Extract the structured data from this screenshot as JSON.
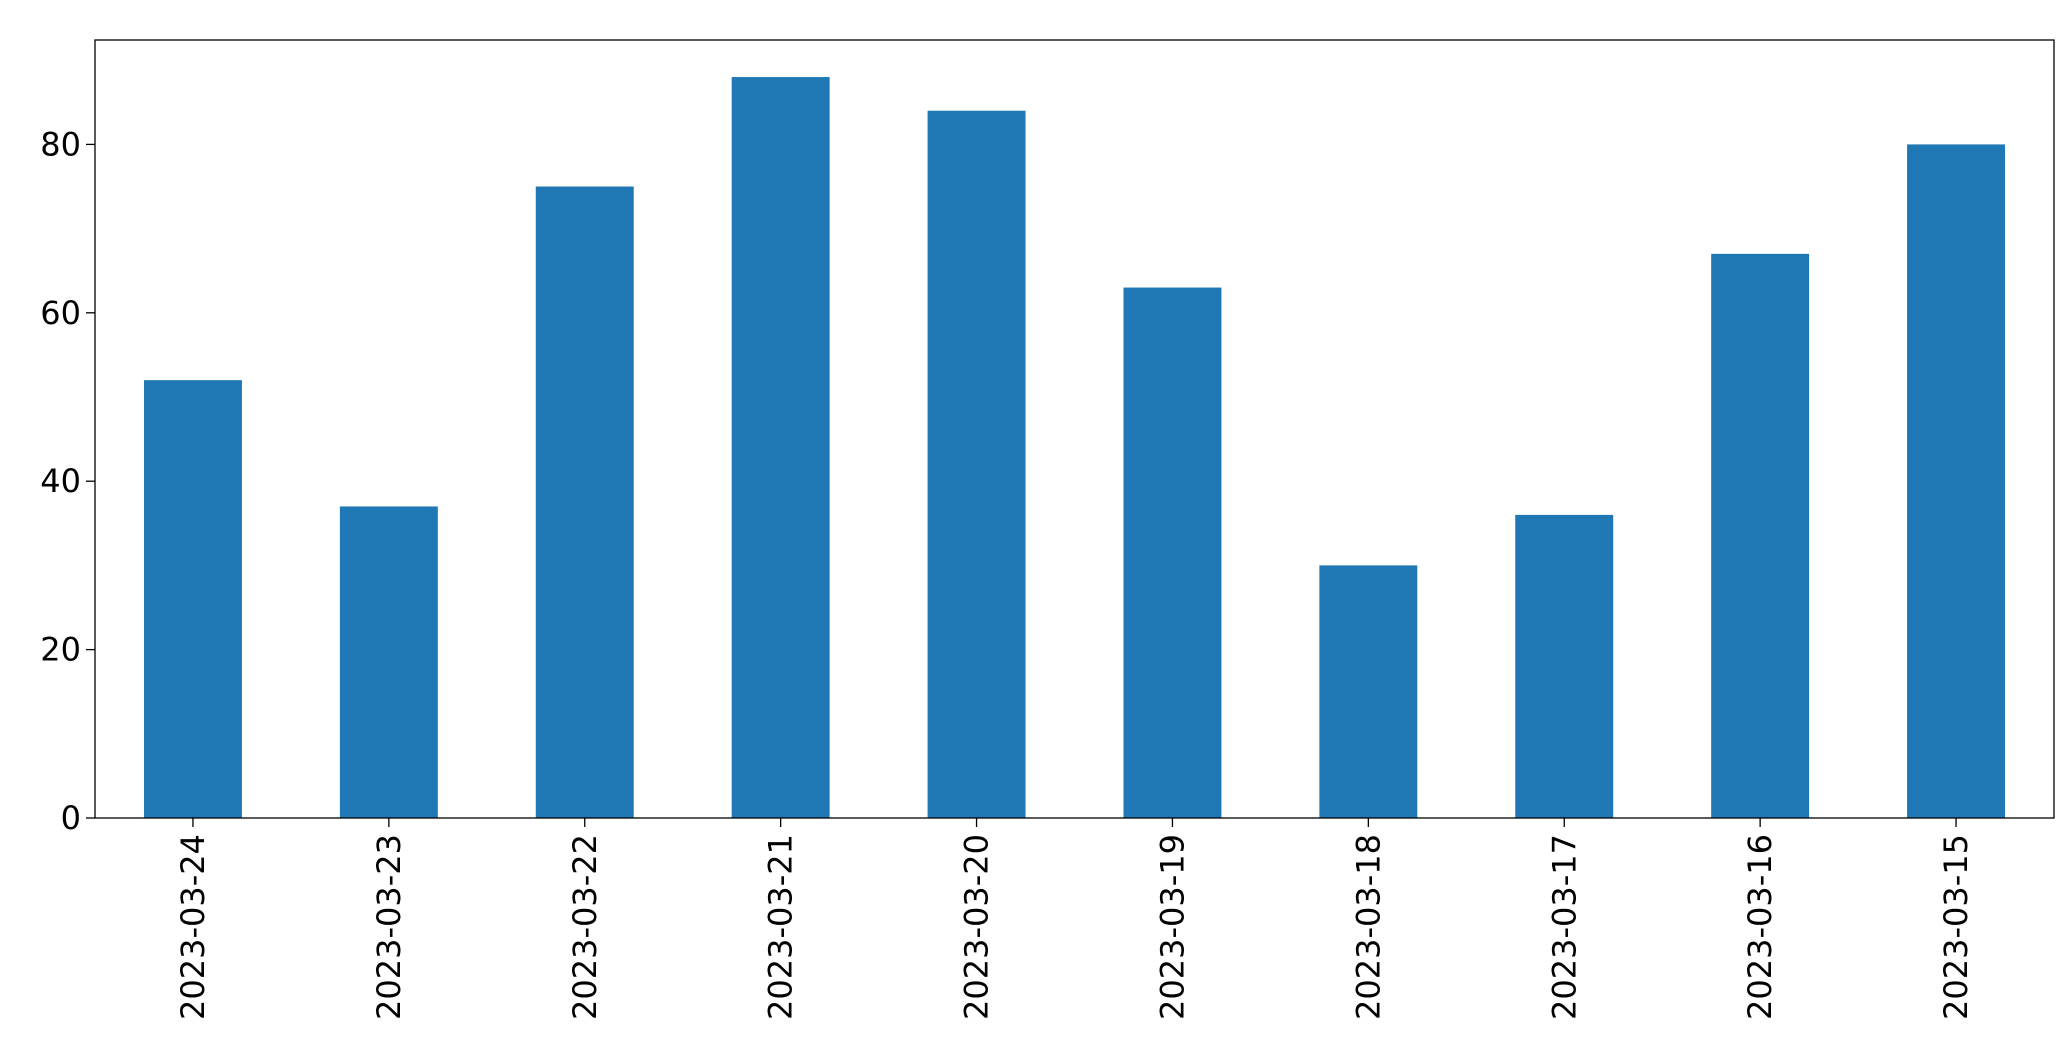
{
  "chart_data": {
    "type": "bar",
    "categories": [
      "2023-03-24",
      "2023-03-23",
      "2023-03-22",
      "2023-03-21",
      "2023-03-20",
      "2023-03-19",
      "2023-03-18",
      "2023-03-17",
      "2023-03-16",
      "2023-03-15"
    ],
    "values": [
      52,
      37,
      75,
      88,
      84,
      63,
      30,
      36,
      67,
      80
    ],
    "color": "#1f77b4",
    "ylim": [
      0,
      92.4
    ],
    "yticks": [
      0,
      20,
      40,
      60,
      80
    ],
    "grid": false
  }
}
